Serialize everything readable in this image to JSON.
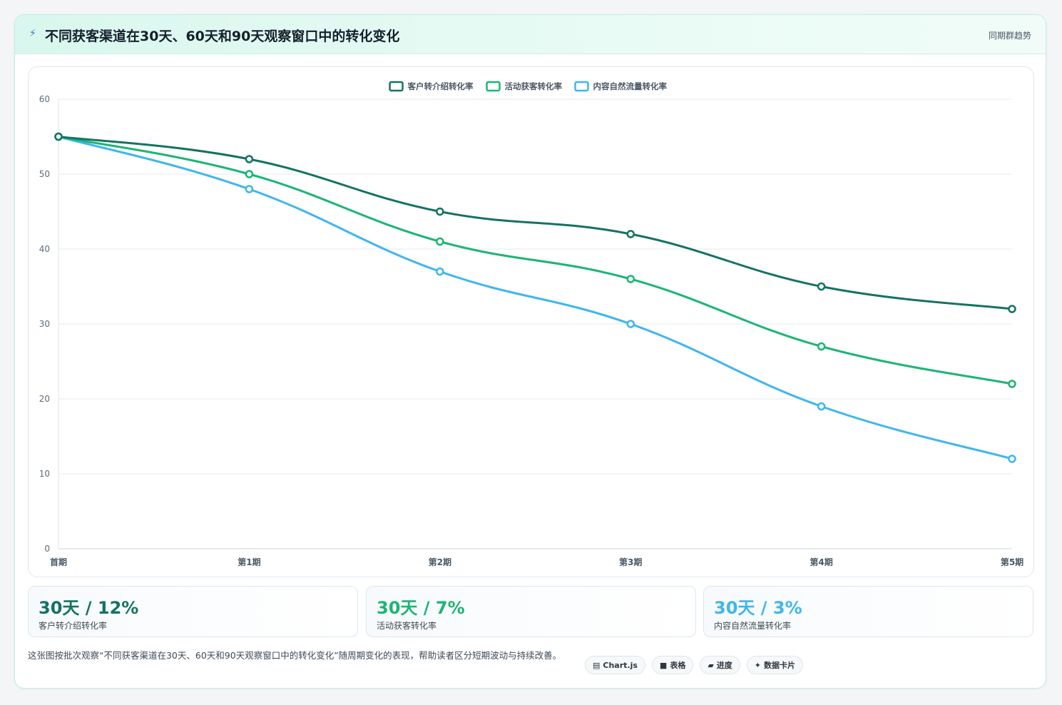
{
  "header": {
    "icon": "lightning-icon",
    "title": "不同获客渠道在30天、60天和90天观察窗口中的转化变化",
    "tag": "同期群趋势"
  },
  "chart_data": {
    "type": "line",
    "title": "",
    "xlabel": "",
    "ylabel": "",
    "categories": [
      "首期",
      "第1期",
      "第2期",
      "第3期",
      "第4期",
      "第5期"
    ],
    "ylim": [
      0,
      60
    ],
    "yticks": [
      0,
      10,
      20,
      30,
      40,
      50,
      60
    ],
    "grid": true,
    "legend_position": "top-center",
    "series": [
      {
        "name": "客户转介绍转化率",
        "color": "#137363",
        "values": [
          55,
          52,
          45,
          42,
          35,
          32
        ]
      },
      {
        "name": "活动获客转化率",
        "color": "#1db574",
        "values": [
          55,
          50,
          41,
          36,
          27,
          22
        ]
      },
      {
        "name": "内容自然流量转化率",
        "color": "#3fb6ee",
        "values": [
          55,
          48,
          37,
          30,
          19,
          12
        ]
      }
    ]
  },
  "stats": [
    {
      "value": "30天 / 12%",
      "label": "客户转介绍转化率",
      "color": "#137363"
    },
    {
      "value": "30天 / 7%",
      "label": "活动获客转化率",
      "color": "#1db574"
    },
    {
      "value": "30天 / 3%",
      "label": "内容自然流量转化率",
      "color": "#3fb6ee"
    }
  ],
  "footnote": "这张图按批次观察“不同获客渠道在30天、60天和90天观察窗口中的转化变化”随周期变化的表现，帮助读者区分短期波动与持续改善。",
  "chips": [
    {
      "icon": "chart-icon",
      "glyph": "▤",
      "label": "Chart.js"
    },
    {
      "icon": "table-icon",
      "glyph": "■",
      "label": "表格"
    },
    {
      "icon": "progress-icon",
      "glyph": "▰",
      "label": "进度"
    },
    {
      "icon": "sparkle-icon",
      "glyph": "✦",
      "label": "数据卡片"
    }
  ]
}
